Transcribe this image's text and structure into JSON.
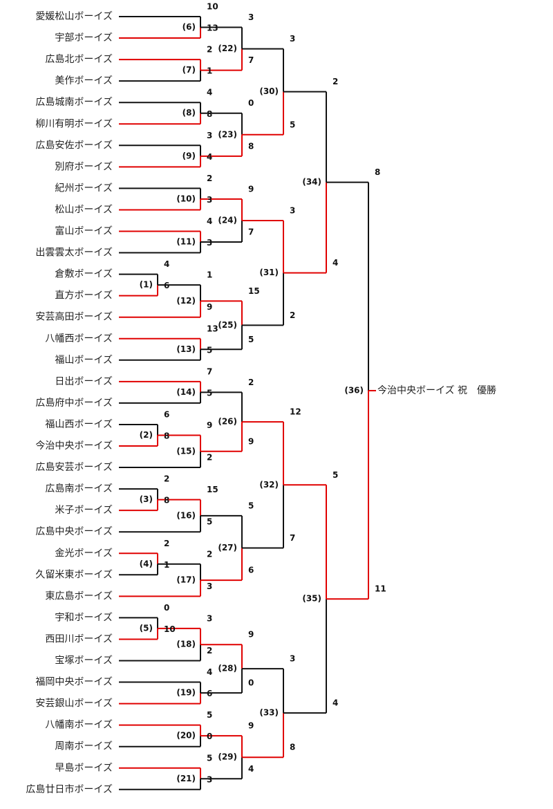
{
  "teams": [
    "愛媛松山ボーイズ",
    "宇部ボーイズ",
    "広島北ボーイズ",
    "美作ボーイズ",
    "広島城南ボーイズ",
    "柳川有明ボーイズ",
    "広島安佐ボーイズ",
    "別府ボーイズ",
    "紀州ボーイズ",
    "松山ボーイズ",
    "富山ボーイズ",
    "出雲雲太ボーイズ",
    "倉敷ボーイズ",
    "直方ボーイズ",
    "安芸高田ボーイズ",
    "八幡西ボーイズ",
    "福山ボーイズ",
    "日出ボーイズ",
    "広島府中ボーイズ",
    "福山西ボーイズ",
    "今治中央ボーイズ",
    "広島安芸ボーイズ",
    "広島南ボーイズ",
    "米子ボーイズ",
    "広島中央ボーイズ",
    "金光ボーイズ",
    "久留米東ボーイズ",
    "東広島ボーイズ",
    "宇和ボーイズ",
    "西田川ボーイズ",
    "宝塚ボーイズ",
    "福岡中央ボーイズ",
    "安芸銀山ボーイズ",
    "八幡南ボーイズ",
    "周南ボーイズ",
    "早島ボーイズ",
    "広島廿日市ボーイズ"
  ],
  "games": [
    {
      "id": "1",
      "a": "12",
      "b": "13",
      "sa": "4",
      "sb": "6",
      "winner": "b"
    },
    {
      "id": "2",
      "a": "19",
      "b": "20",
      "sa": "6",
      "sb": "8",
      "winner": "b"
    },
    {
      "id": "3",
      "a": "22",
      "b": "23",
      "sa": "2",
      "sb": "8",
      "winner": "b"
    },
    {
      "id": "4",
      "a": "25",
      "b": "26",
      "sa": "2",
      "sb": "1",
      "winner": "a"
    },
    {
      "id": "5",
      "a": "28",
      "b": "29",
      "sa": "0",
      "sb": "10",
      "winner": "b"
    },
    {
      "id": "6",
      "a": "0",
      "b": "1",
      "sa": "10",
      "sb": "13",
      "winner": "b"
    },
    {
      "id": "7",
      "a": "2",
      "b": "3",
      "sa": "2",
      "sb": "1",
      "winner": "a"
    },
    {
      "id": "8",
      "a": "4",
      "b": "5",
      "sa": "4",
      "sb": "8",
      "winner": "b"
    },
    {
      "id": "9",
      "a": "6",
      "b": "7",
      "sa": "3",
      "sb": "4",
      "winner": "b"
    },
    {
      "id": "10",
      "a": "8",
      "b": "9",
      "sa": "2",
      "sb": "3",
      "winner": "b"
    },
    {
      "id": "11",
      "a": "10",
      "b": "11",
      "sa": "4",
      "sb": "3",
      "winner": "a"
    },
    {
      "id": "12",
      "a": "g1",
      "b": "14",
      "sa": "1",
      "sb": "9",
      "winner": "b"
    },
    {
      "id": "13",
      "a": "15",
      "b": "16",
      "sa": "13",
      "sb": "5",
      "winner": "a"
    },
    {
      "id": "14",
      "a": "17",
      "b": "18",
      "sa": "7",
      "sb": "5",
      "winner": "a"
    },
    {
      "id": "15",
      "a": "g2",
      "b": "21",
      "sa": "9",
      "sb": "2",
      "winner": "a"
    },
    {
      "id": "16",
      "a": "g3",
      "b": "24",
      "sa": "15",
      "sb": "5",
      "winner": "a"
    },
    {
      "id": "17",
      "a": "g4",
      "b": "27",
      "sa": "2",
      "sb": "3",
      "winner": "b"
    },
    {
      "id": "18",
      "a": "g5",
      "b": "30",
      "sa": "3",
      "sb": "2",
      "winner": "a"
    },
    {
      "id": "19",
      "a": "31",
      "b": "32",
      "sa": "4",
      "sb": "6",
      "winner": "b"
    },
    {
      "id": "20",
      "a": "33",
      "b": "34",
      "sa": "5",
      "sb": "0",
      "winner": "a"
    },
    {
      "id": "21",
      "a": "35",
      "b": "36",
      "sa": "5",
      "sb": "3",
      "winner": "a"
    },
    {
      "id": "22",
      "a": "g6",
      "b": "g7",
      "sa": "3",
      "sb": "7",
      "winner": "b"
    },
    {
      "id": "23",
      "a": "g8",
      "b": "g9",
      "sa": "0",
      "sb": "8",
      "winner": "b"
    },
    {
      "id": "24",
      "a": "g10",
      "b": "g11",
      "sa": "9",
      "sb": "7",
      "winner": "a"
    },
    {
      "id": "25",
      "a": "g12",
      "b": "g13",
      "sa": "15",
      "sb": "5",
      "winner": "a"
    },
    {
      "id": "26",
      "a": "g14",
      "b": "g15",
      "sa": "2",
      "sb": "9",
      "winner": "b"
    },
    {
      "id": "27",
      "a": "g16",
      "b": "g17",
      "sa": "5",
      "sb": "6",
      "winner": "b"
    },
    {
      "id": "28",
      "a": "g18",
      "b": "g19",
      "sa": "9",
      "sb": "0",
      "winner": "a"
    },
    {
      "id": "29",
      "a": "g20",
      "b": "g21",
      "sa": "9",
      "sb": "4",
      "winner": "a"
    },
    {
      "id": "30",
      "a": "g22",
      "b": "g23",
      "sa": "3",
      "sb": "5",
      "winner": "b"
    },
    {
      "id": "31",
      "a": "g24",
      "b": "g25",
      "sa": "3",
      "sb": "2",
      "winner": "a"
    },
    {
      "id": "32",
      "a": "g26",
      "b": "g27",
      "sa": "12",
      "sb": "7",
      "winner": "a"
    },
    {
      "id": "33",
      "a": "g28",
      "b": "g29",
      "sa": "3",
      "sb": "8",
      "winner": "b"
    },
    {
      "id": "34",
      "a": "g30",
      "b": "g31",
      "sa": "2",
      "sb": "4",
      "winner": "b"
    },
    {
      "id": "35",
      "a": "g32",
      "b": "g33",
      "sa": "5",
      "sb": "4",
      "winner": "a"
    },
    {
      "id": "36",
      "a": "g34",
      "b": "g35",
      "sa": "8",
      "sb": "11",
      "winner": "b"
    }
  ],
  "champion_text": "今治中央ボーイズ 祝　優勝",
  "colors": {
    "win": "#e00000",
    "lose": "#111111"
  }
}
